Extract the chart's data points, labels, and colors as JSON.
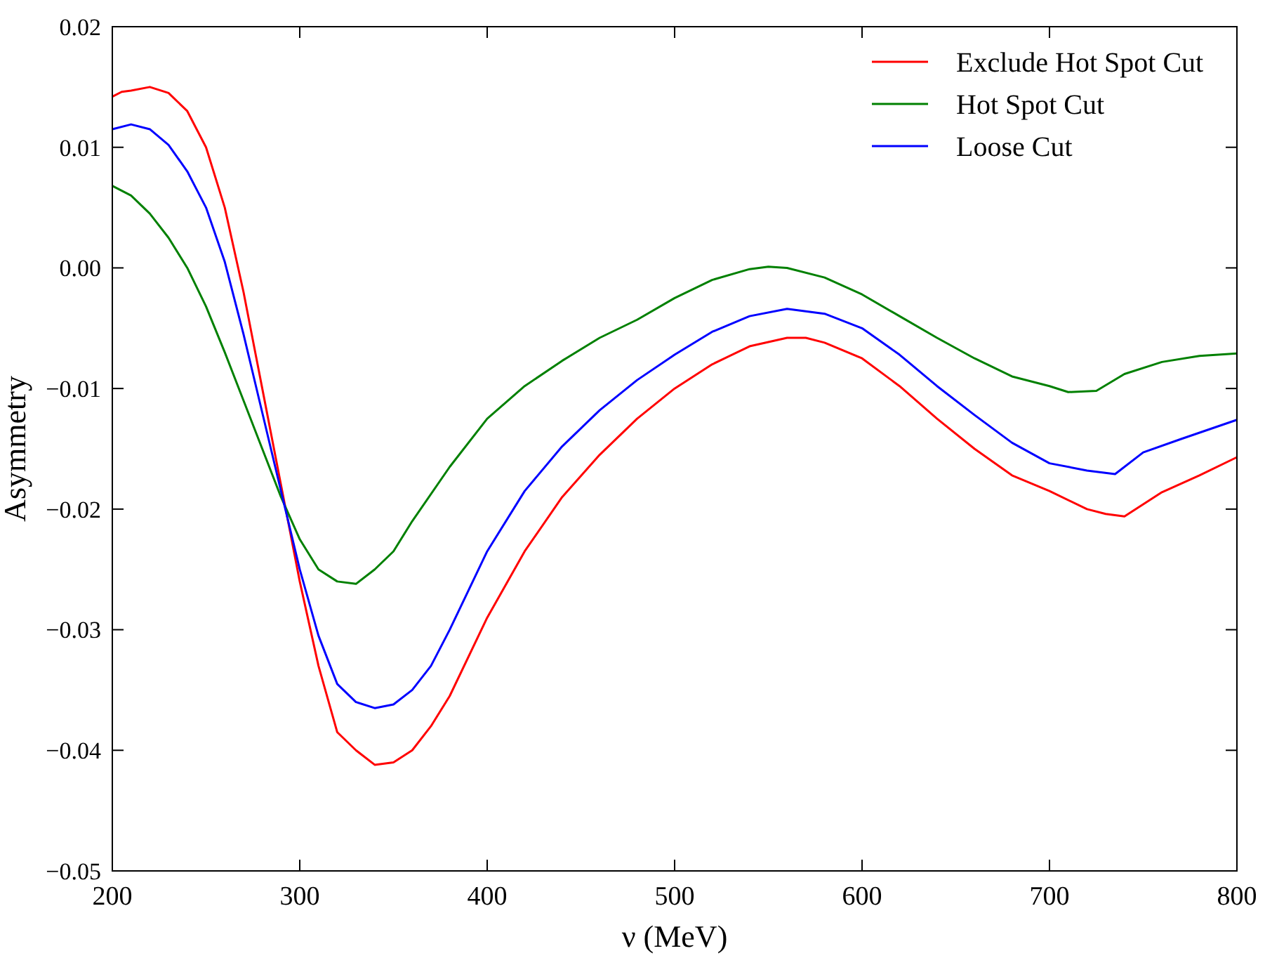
{
  "chart_data": {
    "type": "line",
    "xlabel": "ν (MeV)",
    "ylabel": "Asymmetry",
    "xlim": [
      200,
      800
    ],
    "ylim": [
      -0.05,
      0.02
    ],
    "xticks": [
      200,
      300,
      400,
      500,
      600,
      700,
      800
    ],
    "yticks": [
      {
        "value": -0.05,
        "label": "−0.05"
      },
      {
        "value": -0.04,
        "label": "−0.04"
      },
      {
        "value": -0.03,
        "label": "−0.03"
      },
      {
        "value": -0.02,
        "label": "−0.02"
      },
      {
        "value": -0.01,
        "label": "−0.01"
      },
      {
        "value": 0,
        "label": "0.00"
      },
      {
        "value": 0.01,
        "label": "0.01"
      },
      {
        "value": 0.02,
        "label": "0.02"
      }
    ],
    "grid": false,
    "legend": "top right",
    "marker": "none",
    "line_style": "solid",
    "series": [
      {
        "name": "Exclude Hot Spot Cut",
        "color": "#ff0000",
        "x": [
          200,
          205,
          210,
          220,
          230,
          240,
          250,
          260,
          270,
          280,
          290,
          300,
          310,
          320,
          330,
          340,
          350,
          360,
          370,
          380,
          400,
          420,
          440,
          460,
          480,
          500,
          520,
          540,
          560,
          570,
          580,
          600,
          620,
          640,
          660,
          680,
          700,
          720,
          730,
          740,
          760,
          780,
          800
        ],
        "values": [
          0.0142,
          0.0146,
          0.0147,
          0.015,
          0.0145,
          0.013,
          0.01,
          0.005,
          -0.002,
          -0.01,
          -0.018,
          -0.026,
          -0.033,
          -0.0385,
          -0.04,
          -0.0412,
          -0.041,
          -0.04,
          -0.038,
          -0.0355,
          -0.029,
          -0.0235,
          -0.019,
          -0.0155,
          -0.0125,
          -0.01,
          -0.008,
          -0.0065,
          -0.0058,
          -0.0058,
          -0.0062,
          -0.0075,
          -0.0098,
          -0.0125,
          -0.015,
          -0.0172,
          -0.0185,
          -0.02,
          -0.0204,
          -0.0206,
          -0.0186,
          -0.0172,
          -0.0157
        ]
      },
      {
        "name": "Hot Spot Cut",
        "color": "#008000",
        "x": [
          200,
          210,
          220,
          230,
          240,
          250,
          260,
          270,
          280,
          290,
          300,
          310,
          320,
          330,
          340,
          350,
          360,
          380,
          400,
          420,
          440,
          460,
          480,
          500,
          520,
          540,
          550,
          560,
          580,
          600,
          620,
          640,
          660,
          680,
          700,
          710,
          725,
          740,
          760,
          780,
          800
        ],
        "values": [
          0.0068,
          0.006,
          0.0045,
          0.0025,
          0,
          -0.0032,
          -0.007,
          -0.011,
          -0.015,
          -0.019,
          -0.0225,
          -0.025,
          -0.026,
          -0.0262,
          -0.025,
          -0.0235,
          -0.021,
          -0.0165,
          -0.0125,
          -0.0098,
          -0.0077,
          -0.0058,
          -0.0043,
          -0.0025,
          -0.001,
          -0.0001,
          0.0001,
          0,
          -0.0008,
          -0.0022,
          -0.004,
          -0.0058,
          -0.0075,
          -0.009,
          -0.0098,
          -0.0103,
          -0.0102,
          -0.0088,
          -0.0078,
          -0.0073,
          -0.0071
        ]
      },
      {
        "name": "Loose Cut",
        "color": "#0000ff",
        "x": [
          200,
          210,
          220,
          230,
          240,
          250,
          260,
          270,
          280,
          290,
          300,
          310,
          320,
          330,
          340,
          350,
          360,
          370,
          380,
          400,
          420,
          440,
          460,
          480,
          500,
          520,
          540,
          560,
          580,
          600,
          620,
          640,
          660,
          680,
          700,
          720,
          735,
          750,
          770,
          800
        ],
        "values": [
          0.0115,
          0.0119,
          0.0115,
          0.0102,
          0.008,
          0.005,
          0.0005,
          -0.0055,
          -0.012,
          -0.0185,
          -0.025,
          -0.0305,
          -0.0345,
          -0.036,
          -0.0365,
          -0.0362,
          -0.035,
          -0.033,
          -0.03,
          -0.0235,
          -0.0185,
          -0.0148,
          -0.0118,
          -0.0093,
          -0.0072,
          -0.0053,
          -0.004,
          -0.0034,
          -0.0038,
          -0.005,
          -0.0072,
          -0.0098,
          -0.0122,
          -0.0145,
          -0.0162,
          -0.0168,
          -0.0171,
          -0.0153,
          -0.0142,
          -0.0126
        ]
      }
    ]
  }
}
